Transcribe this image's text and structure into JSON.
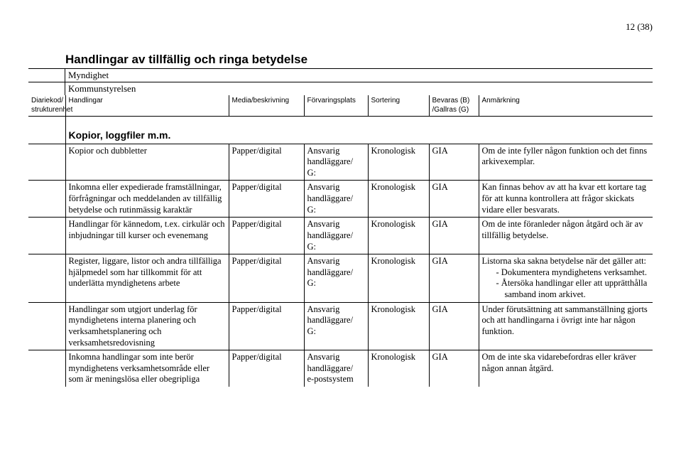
{
  "page_number": "12 (38)",
  "title": "Handlingar av tillfällig och ringa betydelse",
  "myndighet_label": "Myndighet",
  "myndighet_value": "Kommunstyrelsen",
  "columns": {
    "c0": "Diariekod/\nstrukturenhet",
    "c1": "Handlingar",
    "c2": "Media/beskrivning",
    "c3": "Förvaringsplats",
    "c4": "Sortering",
    "c5": "Bevaras (B)\n/Gallras (G)",
    "c6": "Anmärkning"
  },
  "section_heading": "Kopior, loggfiler m.m.",
  "rows": [
    {
      "handlingar": "Kopior och dubbletter",
      "media": "Papper/digital",
      "forvar": "Ansvarig\nhandläggare/\nG:",
      "sortering": "Kronologisk",
      "bevaras": "GIA",
      "anm": "Om de inte fyller någon funktion och det finns arkivexemplar."
    },
    {
      "handlingar": "Inkomna eller expedierade framställningar, förfrågningar och meddelanden av tillfällig betydelse och rutinmässig karaktär",
      "media": "Papper/digital",
      "forvar": "Ansvarig\nhandläggare/\nG:",
      "sortering": "Kronologisk",
      "bevaras": "GIA",
      "anm": "Kan finnas behov av att ha kvar ett kortare tag för att kunna kontrollera att frågor skickats vidare eller besvarats."
    },
    {
      "handlingar": "Handlingar för kännedom, t.ex. cirkulär och inbjudningar till kurser och evenemang",
      "media": "Papper/digital",
      "forvar": "Ansvarig\nhandläggare/\nG:",
      "sortering": "Kronologisk",
      "bevaras": "GIA",
      "anm": "Om de inte föranleder någon åtgärd och är av tillfällig betydelse."
    },
    {
      "handlingar": "Register, liggare, listor och andra tillfälliga hjälpmedel som har tillkommit för att underlätta myndighetens arbete",
      "media": "Papper/digital",
      "forvar": "Ansvarig\nhandläggare/\nG:",
      "sortering": "Kronologisk",
      "bevaras": "GIA",
      "anm_intro": "Listorna ska sakna betydelse när det gäller att:",
      "anm_list": [
        "Dokumentera myndighetens verksamhet.",
        "Återsöka handlingar eller att upprätthålla samband inom arkivet."
      ]
    },
    {
      "handlingar": "Handlingar som utgjort underlag för myndighetens interna planering och verksamhetsplanering och verksamhetsredovisning",
      "media": "Papper/digital",
      "forvar": "Ansvarig\nhandläggare/\nG:",
      "sortering": "Kronologisk",
      "bevaras": "GIA",
      "anm": "Under förutsättning att sammanställning gjorts och att handlingarna i övrigt inte har någon funktion."
    },
    {
      "handlingar": "Inkomna handlingar som inte berör myndighetens verksamhetsområde eller som är meningslösa eller obegripliga",
      "media": "Papper/digital",
      "forvar": "Ansvarig\nhandläggare/\ne-postsystem",
      "sortering": "Kronologisk",
      "bevaras": "GIA",
      "anm": "Om de inte ska vidarebefordras eller kräver någon annan åtgärd."
    }
  ]
}
